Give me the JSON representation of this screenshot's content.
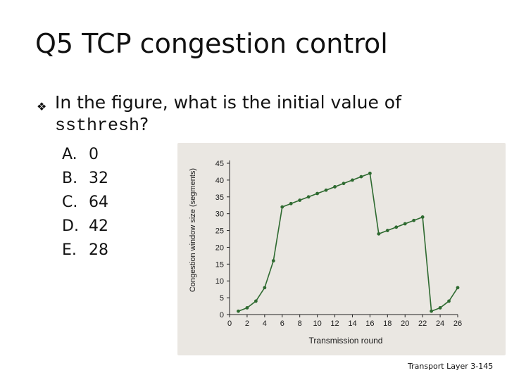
{
  "slide": {
    "title": "Q5 TCP congestion control",
    "bullet_icon": "diamond-bullet-icon",
    "question_text": "In the figure, what is the initial value of",
    "question_code": "ssthresh",
    "question_end": "?",
    "options": [
      {
        "letter": "A.",
        "value": "0"
      },
      {
        "letter": "B.",
        "value": "32"
      },
      {
        "letter": "C.",
        "value": "64"
      },
      {
        "letter": "D.",
        "value": "42"
      },
      {
        "letter": "E.",
        "value": "28"
      }
    ],
    "footer": "Transport Layer 3-145"
  },
  "chart_data": {
    "type": "line",
    "xlabel": "Transmission round",
    "ylabel": "Congestion window size (segments)",
    "xlim": [
      0,
      26
    ],
    "ylim": [
      0,
      45
    ],
    "xticks": [
      0,
      2,
      4,
      6,
      8,
      10,
      12,
      14,
      16,
      18,
      20,
      22,
      24,
      26
    ],
    "yticks": [
      0,
      5,
      10,
      15,
      20,
      25,
      30,
      35,
      40,
      45
    ],
    "grid": false,
    "line_color": "#2e6a30",
    "series": [
      {
        "x": [
          1,
          2,
          3,
          4,
          5,
          6,
          7,
          8,
          9,
          10,
          11,
          12,
          13,
          14,
          15,
          16,
          17,
          18,
          19,
          20,
          21,
          22,
          23,
          24,
          25,
          26
        ],
        "y": [
          1,
          2,
          4,
          8,
          16,
          32,
          33,
          34,
          35,
          36,
          37,
          38,
          39,
          40,
          41,
          42,
          24,
          25,
          26,
          27,
          28,
          29,
          1,
          2,
          4,
          8
        ]
      }
    ]
  }
}
